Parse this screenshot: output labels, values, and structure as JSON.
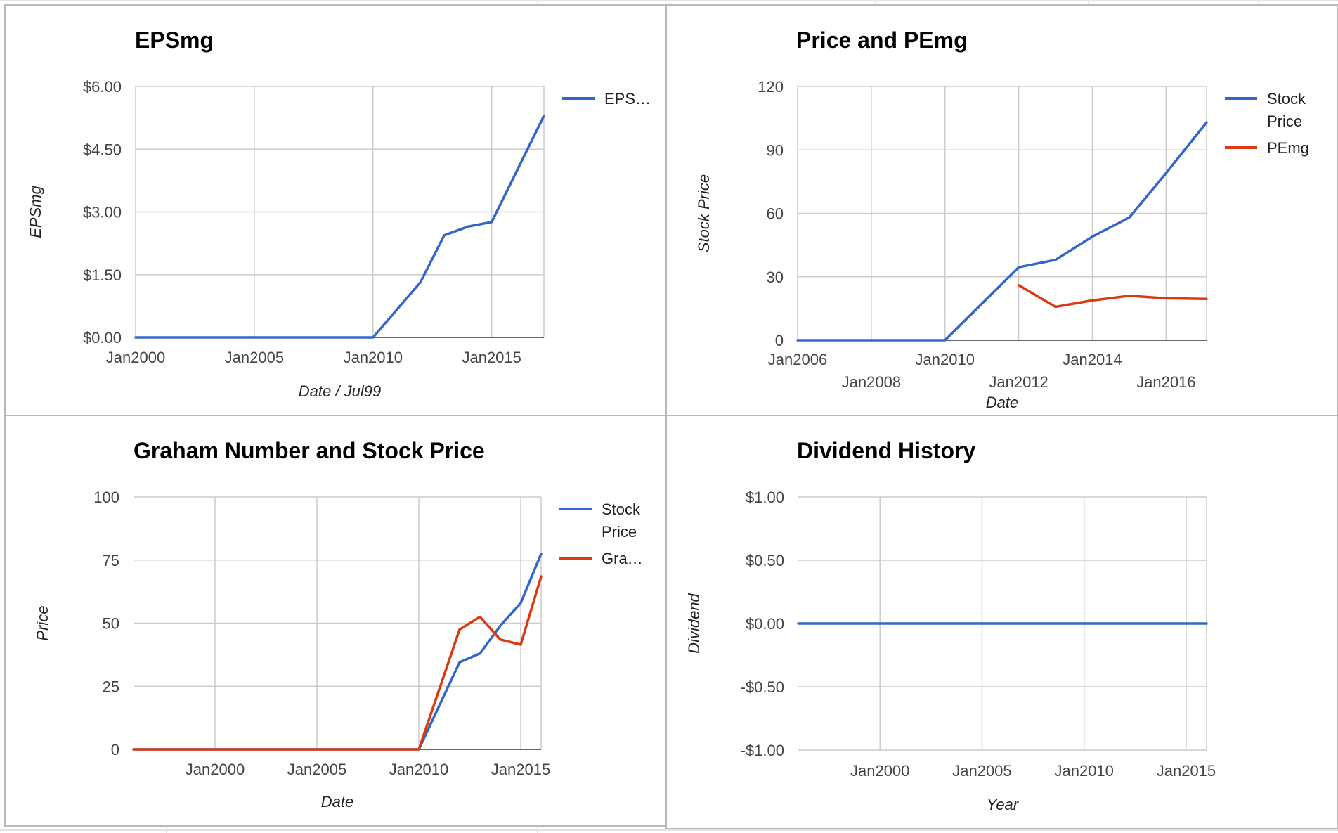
{
  "colors": {
    "blue": "#3366cc",
    "red": "#dc3912"
  },
  "chart_data": [
    {
      "id": "eps",
      "type": "line",
      "title": "EPSmg",
      "xlabel": "Date / Jul99",
      "ylabel": "EPSmg",
      "xlim": [
        2000,
        2017.2
      ],
      "ylim": [
        0,
        6
      ],
      "yticks": [
        0,
        1.5,
        3,
        4.5,
        6
      ],
      "yformat": "currency2",
      "xticks": [
        {
          "x": 2000,
          "label": "Jan2000",
          "row": 0
        },
        {
          "x": 2005,
          "label": "Jan2005",
          "row": 0
        },
        {
          "x": 2010,
          "label": "Jan2010",
          "row": 0
        },
        {
          "x": 2015,
          "label": "Jan2015",
          "row": 0
        }
      ],
      "legend": "right",
      "series": [
        {
          "name": "EPS…",
          "color": "#3366cc",
          "points": [
            [
              2000,
              0
            ],
            [
              2010,
              0
            ],
            [
              2012,
              1.32
            ],
            [
              2013,
              2.44
            ],
            [
              2014,
              2.65
            ],
            [
              2015,
              2.76
            ],
            [
              2017.2,
              5.3
            ]
          ]
        }
      ]
    },
    {
      "id": "price-pe",
      "type": "line",
      "title": "Price and PEmg",
      "xlabel": "Date",
      "ylabel": "Stock Price",
      "xlim": [
        2006,
        2017.1
      ],
      "ylim": [
        0,
        120
      ],
      "yticks": [
        0,
        30,
        60,
        90,
        120
      ],
      "yformat": "int",
      "xticks": [
        {
          "x": 2006,
          "label": "Jan2006",
          "row": 0
        },
        {
          "x": 2008,
          "label": "Jan2008",
          "row": 1
        },
        {
          "x": 2010,
          "label": "Jan2010",
          "row": 0
        },
        {
          "x": 2012,
          "label": "Jan2012",
          "row": 1
        },
        {
          "x": 2014,
          "label": "Jan2014",
          "row": 0
        },
        {
          "x": 2016,
          "label": "Jan2016",
          "row": 1
        }
      ],
      "legend": "right",
      "series": [
        {
          "name": "Stock Price",
          "color": "#3366cc",
          "points": [
            [
              2006,
              0
            ],
            [
              2010,
              0
            ],
            [
              2012,
              34.5
            ],
            [
              2013,
              38
            ],
            [
              2014,
              49
            ],
            [
              2015,
              58
            ],
            [
              2016,
              79
            ],
            [
              2017.1,
              103
            ]
          ]
        },
        {
          "name": "PEmg",
          "color": "#dc3912",
          "points": [
            [
              2012,
              26
            ],
            [
              2013,
              15.8
            ],
            [
              2014,
              18.8
            ],
            [
              2015,
              21
            ],
            [
              2016,
              19.8
            ],
            [
              2017.1,
              19.5
            ]
          ]
        }
      ]
    },
    {
      "id": "graham",
      "type": "line",
      "title": "Graham Number and Stock Price",
      "xlabel": "Date",
      "ylabel": "Price",
      "xlim": [
        1996,
        2016
      ],
      "ylim": [
        0,
        100
      ],
      "yticks": [
        0,
        25,
        50,
        75,
        100
      ],
      "yformat": "int",
      "xticks": [
        {
          "x": 2000,
          "label": "Jan2000",
          "row": 0
        },
        {
          "x": 2005,
          "label": "Jan2005",
          "row": 0
        },
        {
          "x": 2010,
          "label": "Jan2010",
          "row": 0
        },
        {
          "x": 2015,
          "label": "Jan2015",
          "row": 0
        }
      ],
      "legend": "right",
      "series": [
        {
          "name": "Stock Price",
          "color": "#3366cc",
          "points": [
            [
              1996,
              0
            ],
            [
              2010,
              0
            ],
            [
              2012,
              34.5
            ],
            [
              2013,
              38
            ],
            [
              2014,
              49
            ],
            [
              2015,
              58
            ],
            [
              2016,
              77.5
            ]
          ]
        },
        {
          "name": "Gra…",
          "color": "#dc3912",
          "points": [
            [
              1996,
              0
            ],
            [
              2010,
              0
            ],
            [
              2012,
              47.5
            ],
            [
              2013,
              52.5
            ],
            [
              2014,
              43.5
            ],
            [
              2015,
              41.5
            ],
            [
              2016,
              68.5
            ]
          ]
        }
      ]
    },
    {
      "id": "dividend",
      "type": "line",
      "title": "Dividend History",
      "xlabel": "Year",
      "ylabel": "Dividend",
      "xlim": [
        1996,
        2016
      ],
      "ylim": [
        -1,
        1
      ],
      "yticks": [
        -1,
        -0.5,
        0,
        0.5,
        1
      ],
      "yformat": "currency2",
      "xticks": [
        {
          "x": 2000,
          "label": "Jan2000",
          "row": 0
        },
        {
          "x": 2005,
          "label": "Jan2005",
          "row": 0
        },
        {
          "x": 2010,
          "label": "Jan2010",
          "row": 0
        },
        {
          "x": 2015,
          "label": "Jan2015",
          "row": 0
        }
      ],
      "legend": "none",
      "series": [
        {
          "name": "",
          "color": "#3366cc",
          "points": [
            [
              1996,
              0
            ],
            [
              2016,
              0
            ]
          ]
        }
      ]
    }
  ]
}
